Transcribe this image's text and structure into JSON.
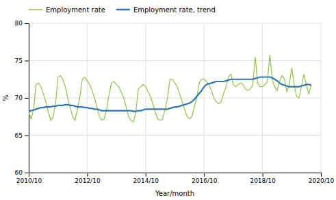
{
  "chart_data": {
    "type": "line",
    "xlabel": "Year/month",
    "ylabel": "%",
    "x": [
      0,
      1,
      2,
      3,
      4,
      5,
      6,
      7,
      8,
      9,
      10,
      11,
      12,
      13,
      14,
      15,
      16,
      17,
      18,
      19,
      20,
      21,
      22,
      23,
      24,
      25,
      26,
      27,
      28,
      29,
      30,
      31,
      32,
      33,
      34,
      35,
      36,
      37,
      38,
      39,
      40,
      41,
      42,
      43,
      44,
      45,
      46,
      47,
      48,
      49,
      50,
      51,
      52,
      53,
      54,
      55,
      56,
      57,
      58,
      59,
      60,
      61,
      62,
      63,
      64,
      65,
      66,
      67,
      68,
      69,
      70,
      71,
      72,
      73,
      74,
      75,
      76,
      77,
      78,
      79,
      80,
      81,
      82,
      83,
      84,
      85,
      86,
      87,
      88,
      89,
      90,
      91,
      92,
      93,
      94,
      95,
      96,
      97,
      98,
      99,
      100,
      101,
      102,
      103,
      104,
      105,
      106,
      107,
      108,
      109,
      110,
      111,
      112,
      113,
      114,
      115,
      116
    ],
    "series": [
      {
        "name": "Employment rate",
        "color": "#8DC63F",
        "values": [
          68.0,
          67.2,
          68.5,
          71.8,
          72.0,
          71.5,
          70.5,
          69.5,
          68.2,
          67.0,
          67.5,
          69.2,
          72.8,
          73.0,
          72.5,
          71.5,
          70.0,
          68.8,
          67.5,
          67.0,
          68.5,
          70.2,
          72.5,
          72.8,
          72.3,
          71.8,
          71.0,
          70.0,
          68.8,
          67.5,
          67.0,
          67.2,
          68.5,
          70.5,
          72.0,
          72.2,
          71.8,
          71.5,
          70.8,
          70.0,
          68.8,
          67.5,
          67.0,
          66.8,
          68.2,
          71.2,
          71.5,
          71.8,
          71.5,
          70.8,
          70.2,
          69.2,
          68.0,
          67.2,
          67.0,
          67.2,
          68.5,
          70.0,
          72.5,
          72.5,
          72.0,
          71.5,
          70.5,
          69.5,
          68.5,
          67.5,
          67.2,
          67.5,
          68.8,
          70.0,
          72.0,
          72.5,
          72.5,
          72.2,
          71.8,
          71.0,
          70.0,
          69.5,
          69.2,
          69.5,
          70.5,
          71.5,
          72.8,
          73.2,
          71.8,
          71.5,
          71.8,
          72.0,
          71.8,
          71.2,
          71.0,
          71.2,
          71.8,
          75.5,
          72.0,
          71.5,
          71.5,
          71.8,
          72.2,
          75.8,
          72.5,
          71.5,
          71.0,
          72.2,
          73.0,
          72.5,
          70.8,
          71.8,
          74.0,
          71.8,
          70.2,
          70.0,
          71.5,
          73.2,
          71.8,
          70.5,
          71.8
        ]
      },
      {
        "name": "Employment rate, trend",
        "color": "#2E74B5",
        "values": [
          68.2,
          68.3,
          68.4,
          68.5,
          68.6,
          68.7,
          68.7,
          68.8,
          68.8,
          68.8,
          68.9,
          68.9,
          69.0,
          69.0,
          69.0,
          69.1,
          69.1,
          69.0,
          69.0,
          68.9,
          68.8,
          68.8,
          68.8,
          68.7,
          68.7,
          68.6,
          68.6,
          68.5,
          68.5,
          68.4,
          68.3,
          68.3,
          68.3,
          68.3,
          68.3,
          68.3,
          68.3,
          68.3,
          68.3,
          68.3,
          68.3,
          68.3,
          68.3,
          68.2,
          68.2,
          68.3,
          68.3,
          68.4,
          68.5,
          68.5,
          68.5,
          68.5,
          68.5,
          68.5,
          68.5,
          68.5,
          68.5,
          68.5,
          68.6,
          68.7,
          68.8,
          68.8,
          68.9,
          69.0,
          69.1,
          69.2,
          69.3,
          69.5,
          69.8,
          70.2,
          70.6,
          71.0,
          71.5,
          71.8,
          71.9,
          72.0,
          72.1,
          72.2,
          72.2,
          72.2,
          72.2,
          72.3,
          72.4,
          72.5,
          72.5,
          72.5,
          72.5,
          72.5,
          72.5,
          72.5,
          72.5,
          72.5,
          72.5,
          72.6,
          72.7,
          72.8,
          72.8,
          72.8,
          72.8,
          72.8,
          72.7,
          72.5,
          72.3,
          72.0,
          71.8,
          71.7,
          71.6,
          71.5,
          71.5,
          71.5,
          71.5,
          71.5,
          71.6,
          71.7,
          71.8,
          71.8,
          71.7
        ]
      }
    ],
    "xlim": [
      0,
      120
    ],
    "xticks": [
      {
        "value": 0,
        "label": "2010/10"
      },
      {
        "value": 24,
        "label": "2012/10"
      },
      {
        "value": 48,
        "label": "2014/10"
      },
      {
        "value": 72,
        "label": "2016/10"
      },
      {
        "value": 96,
        "label": "2018/10"
      },
      {
        "value": 120,
        "label": "2020/10"
      }
    ],
    "ylim": [
      60,
      80
    ],
    "yticks": [
      60,
      65,
      70,
      75,
      80
    ],
    "grid": true,
    "legend": "top-left"
  }
}
